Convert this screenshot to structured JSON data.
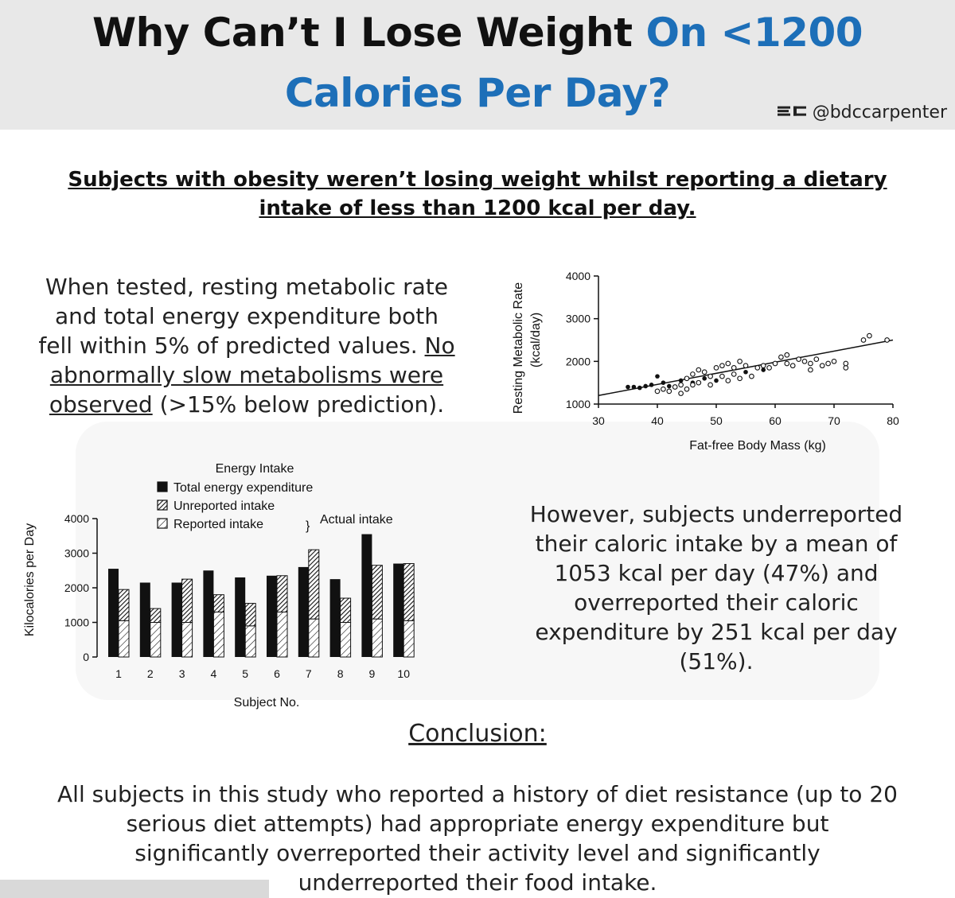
{
  "header": {
    "title_part1": "Why Can’t I Lose Weight ",
    "title_part1_blue": "On <1200",
    "title_line2": "Calories Per Day?",
    "handle": "@bdccarpenter",
    "logo_text": "BC",
    "accent_color": "#1d6fb8"
  },
  "subtitle": {
    "line1": "Subjects with obesity weren’t losing weight whilst reporting a dietary",
    "line2": "intake of less than 1200 kcal per day."
  },
  "left_paragraph": {
    "line1": "When tested, resting metabolic rate",
    "line2": "and total energy expenditure both",
    "line3_plain": "fell within 5% of predicted values. ",
    "line3_underlined": "No",
    "line4_underlined": "abnormally slow metabolisms were",
    "line5_underlined": "observed",
    "line5_plain": " (>15% below prediction)."
  },
  "right_paragraph": {
    "line1": "However, subjects underreported",
    "line2": "their caloric intake by a mean of",
    "line3": "1053 kcal per day (47%) and",
    "line4": "overreported their caloric",
    "line5": "expenditure by 251 kcal per day",
    "line6": "(51%)."
  },
  "conclusion": {
    "heading": "Conclusion:",
    "line1": "All subjects in this study who reported a history of diet resistance (up to 20",
    "line2": "serious diet attempts) had appropriate energy expenditure but",
    "line3": "significantly overreported their activity level and significantly",
    "line4": "underreported their food intake."
  },
  "chart_data": [
    {
      "type": "scatter",
      "title": "",
      "xlabel": "Fat-free Body Mass (kg)",
      "ylabel": "Resting Metabolic Rate",
      "ylabel_unit": "(kcal/day)",
      "xlim": [
        30,
        80
      ],
      "ylim": [
        1000,
        4000
      ],
      "xticks": [
        30,
        40,
        50,
        60,
        70,
        80
      ],
      "yticks": [
        1000,
        2000,
        3000,
        4000
      ],
      "grid": false,
      "trendline": {
        "x": [
          30,
          80
        ],
        "y": [
          1200,
          2500
        ]
      },
      "series": [
        {
          "marker": "filled",
          "points": [
            [
              35,
              1400
            ],
            [
              36,
              1400
            ],
            [
              37,
              1380
            ],
            [
              38,
              1420
            ],
            [
              39,
              1450
            ],
            [
              40,
              1650
            ],
            [
              41,
              1500
            ],
            [
              42,
              1420
            ],
            [
              44,
              1550
            ],
            [
              46,
              1500
            ],
            [
              48,
              1600
            ],
            [
              50,
              1550
            ],
            [
              55,
              1750
            ],
            [
              58,
              1800
            ]
          ]
        },
        {
          "marker": "open",
          "points": [
            [
              40,
              1300
            ],
            [
              41,
              1350
            ],
            [
              42,
              1300
            ],
            [
              43,
              1400
            ],
            [
              44,
              1450
            ],
            [
              44,
              1250
            ],
            [
              45,
              1350
            ],
            [
              45,
              1600
            ],
            [
              46,
              1700
            ],
            [
              46,
              1450
            ],
            [
              47,
              1800
            ],
            [
              47,
              1500
            ],
            [
              48,
              1750
            ],
            [
              49,
              1650
            ],
            [
              49,
              1450
            ],
            [
              50,
              1850
            ],
            [
              51,
              1900
            ],
            [
              51,
              1650
            ],
            [
              52,
              1950
            ],
            [
              52,
              1550
            ],
            [
              53,
              1850
            ],
            [
              53,
              1700
            ],
            [
              54,
              2000
            ],
            [
              54,
              1600
            ],
            [
              55,
              1900
            ],
            [
              56,
              1650
            ],
            [
              57,
              1850
            ],
            [
              58,
              1900
            ],
            [
              59,
              1850
            ],
            [
              60,
              1950
            ],
            [
              61,
              2100
            ],
            [
              62,
              1950
            ],
            [
              62,
              2150
            ],
            [
              63,
              1900
            ],
            [
              64,
              2050
            ],
            [
              65,
              2000
            ],
            [
              66,
              1800
            ],
            [
              66,
              1950
            ],
            [
              67,
              2050
            ],
            [
              68,
              1900
            ],
            [
              69,
              1950
            ],
            [
              70,
              2000
            ],
            [
              72,
              1850
            ],
            [
              72,
              1950
            ],
            [
              75,
              2500
            ],
            [
              76,
              2600
            ],
            [
              79,
              2500
            ]
          ]
        }
      ]
    },
    {
      "type": "bar",
      "title": "Energy Intake",
      "xlabel": "Subject No.",
      "ylabel": "Kilocalories per Day",
      "categories": [
        "1",
        "2",
        "3",
        "4",
        "5",
        "6",
        "7",
        "8",
        "9",
        "10"
      ],
      "ylim": [
        0,
        4000
      ],
      "yticks": [
        0,
        1000,
        2000,
        3000,
        4000
      ],
      "legend_placement": "top",
      "legend_group_label": "Actual intake",
      "series": [
        {
          "name": "Total energy expenditure",
          "values": [
            2550,
            2150,
            2150,
            2500,
            2300,
            2350,
            2600,
            2250,
            3550,
            2700
          ]
        },
        {
          "name": "Unreported intake",
          "values": [
            900,
            400,
            1250,
            500,
            650,
            1050,
            2000,
            700,
            1550,
            1650
          ]
        },
        {
          "name": "Reported intake",
          "values": [
            1050,
            1000,
            1000,
            1300,
            900,
            1300,
            1100,
            1000,
            1100,
            1050
          ]
        }
      ]
    }
  ]
}
